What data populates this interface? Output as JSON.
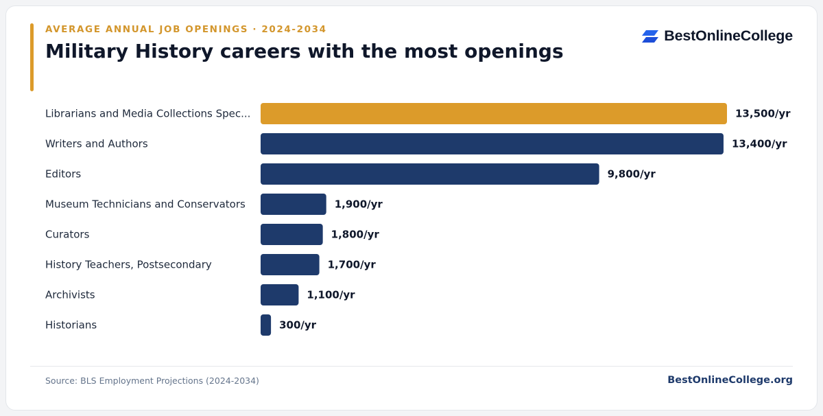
{
  "header": {
    "eyebrow": "AVERAGE ANNUAL JOB OPENINGS · 2024-2034",
    "logo_text": "BestOnlineCollege"
  },
  "colors": {
    "highlight": "#dc9b2a",
    "bar": "#1e3a6b",
    "accent": "#dc9b2a"
  },
  "chart_data": {
    "type": "bar",
    "orientation": "horizontal",
    "title": "Military History careers with the most openings",
    "categories": [
      "Librarians and Media Collections Spec...",
      "Writers and Authors",
      "Editors",
      "Museum Technicians and Conservators",
      "Curators",
      "History Teachers, Postsecondary",
      "Archivists",
      "Historians"
    ],
    "values": [
      13500,
      13400,
      9800,
      1900,
      1800,
      1700,
      1100,
      300
    ],
    "value_labels": [
      "13,500/yr",
      "13,400/yr",
      "9,800/yr",
      "1,900/yr",
      "1,800/yr",
      "1,700/yr",
      "1,100/yr",
      "300/yr"
    ],
    "highlight_index": 0,
    "xlim": [
      0,
      13500
    ],
    "grid": false
  },
  "footer": {
    "source": "Source: BLS Employment Projections (2024-2034)",
    "site": "BestOnlineCollege.org"
  }
}
